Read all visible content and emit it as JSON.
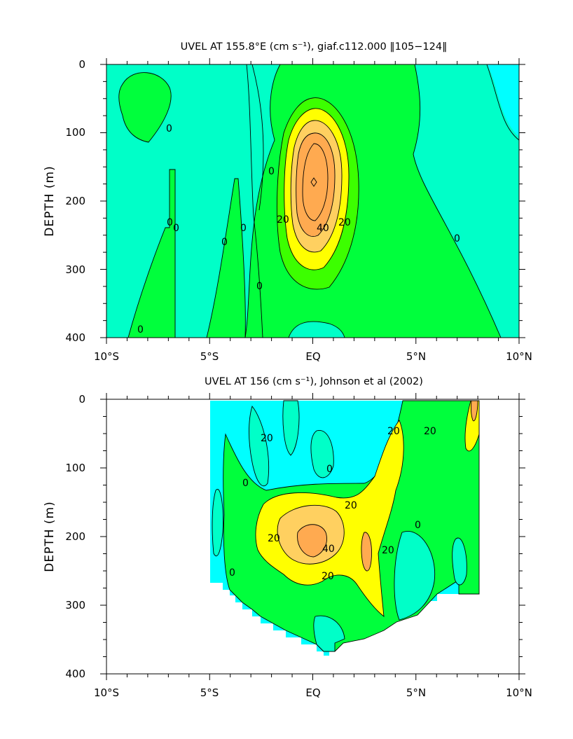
{
  "colors": {
    "cyan": "#00ffff",
    "aqua": "#00ffc8",
    "green": "#00ff3c",
    "lightgreen": "#3cff00",
    "yellow": "#ffff00",
    "lightorange": "#ffd060",
    "orange": "#ffaa50",
    "white": "#ffffff"
  },
  "chart_data": [
    {
      "type": "heatmap",
      "title": "UVEL AT 155.8°E (cm s⁻¹), giaf.c112.000 ‖105−124‖",
      "xlabel": "",
      "ylabel": "DEPTH (m)",
      "xlim": [
        -10,
        10
      ],
      "ylim": [
        400,
        0
      ],
      "x_ticks": [
        "10°S",
        "5°S",
        "EQ",
        "5°N",
        "10°N"
      ],
      "y_ticks": [
        "0",
        "100",
        "200",
        "300",
        "400"
      ],
      "contour_labels": [
        "0",
        "0",
        "0",
        "0",
        "0",
        "0",
        "0",
        "0",
        "20",
        "40",
        "20",
        "0"
      ],
      "core": {
        "lat": -0.1,
        "depth": 175,
        "max_value": 50
      }
    },
    {
      "type": "heatmap",
      "title": "UVEL AT 156 (cm s⁻¹), Johnson et al (2002)",
      "xlabel": "",
      "ylabel": "DEPTH (m)",
      "xlim": [
        -10,
        10
      ],
      "ylim": [
        400,
        0
      ],
      "x_ticks": [
        "10°S",
        "5°S",
        "EQ",
        "5°N",
        "10°N"
      ],
      "y_ticks": [
        "0",
        "100",
        "200",
        "300",
        "400"
      ],
      "contour_labels": [
        "20",
        "20",
        "0",
        "20",
        "20",
        "40",
        "20",
        "20",
        "0",
        "20",
        "0",
        "0"
      ],
      "core": {
        "lat": -0.4,
        "depth": 205,
        "max_value": 45
      }
    }
  ]
}
